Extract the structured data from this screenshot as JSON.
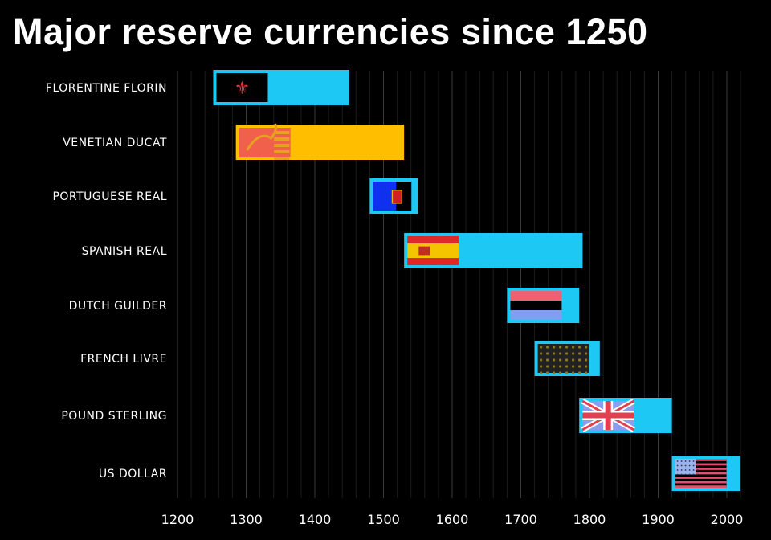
{
  "title": "Major reserve currencies since 1250",
  "chart_data": {
    "type": "bar",
    "orientation": "horizontal-range",
    "title": "Major reserve currencies since 1250",
    "xlabel": "",
    "ylabel": "",
    "xlim": [
      1200,
      2020
    ],
    "xticks": [
      1200,
      1300,
      1400,
      1500,
      1600,
      1700,
      1800,
      1900,
      2000
    ],
    "grid": true,
    "categories": [
      "FLORENTINE FLORIN",
      "VENETIAN DUCAT",
      "PORTUGUESE REAL",
      "SPANISH REAL",
      "DUTCH GUILDER",
      "FRENCH LIVRE",
      "POUND STERLING",
      "US DOLLAR"
    ],
    "series": [
      {
        "name": "FLORENTINE FLORIN",
        "start": 1252,
        "end": 1450,
        "color": "#1ec8f5",
        "flag": "florence"
      },
      {
        "name": "VENETIAN DUCAT",
        "start": 1285,
        "end": 1530,
        "color": "#ffbf00",
        "flag": "venice"
      },
      {
        "name": "PORTUGUESE REAL",
        "start": 1480,
        "end": 1550,
        "color": "#1ec8f5",
        "flag": "portugal"
      },
      {
        "name": "SPANISH REAL",
        "start": 1530,
        "end": 1790,
        "color": "#1ec8f5",
        "flag": "spain"
      },
      {
        "name": "DUTCH GUILDER",
        "start": 1680,
        "end": 1785,
        "color": "#1ec8f5",
        "flag": "netherlands"
      },
      {
        "name": "FRENCH LIVRE",
        "start": 1720,
        "end": 1815,
        "color": "#1ec8f5",
        "flag": "france"
      },
      {
        "name": "POUND STERLING",
        "start": 1785,
        "end": 1920,
        "color": "#1ec8f5",
        "flag": "uk"
      },
      {
        "name": "US DOLLAR",
        "start": 1920,
        "end": 2020,
        "color": "#1ec8f5",
        "flag": "usa"
      }
    ]
  }
}
